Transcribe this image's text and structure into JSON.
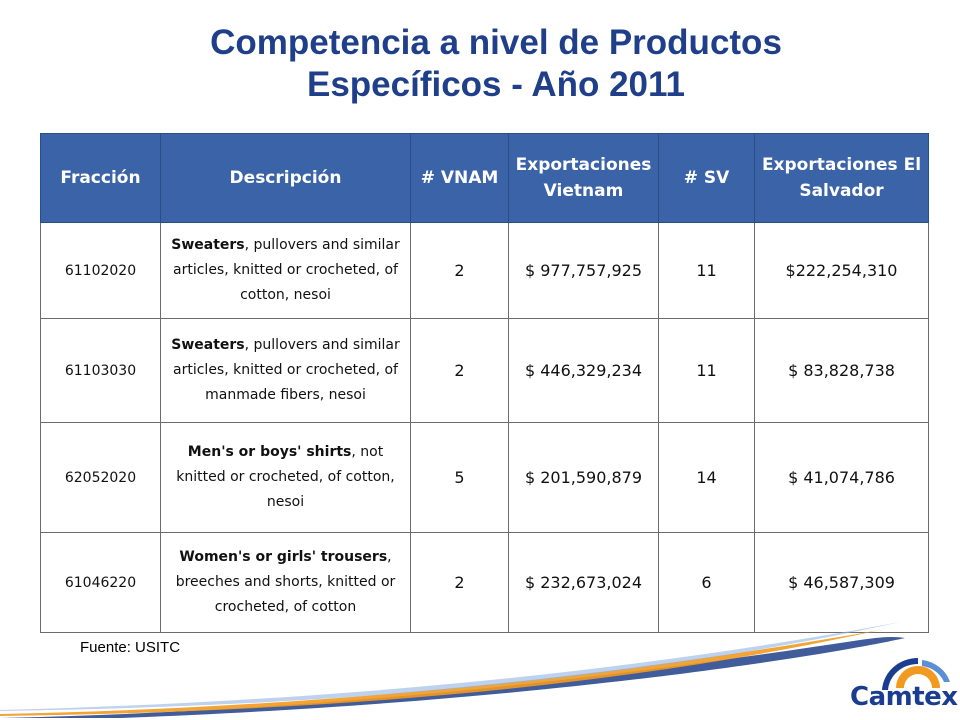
{
  "title": {
    "line1": "Competencia a nivel de Productos",
    "line2": "Específicos - Año 2011"
  },
  "table": {
    "headers": {
      "fraccion": "Fracción",
      "descripcion": "Descripción",
      "vnam": "# VNAM",
      "exp_vietnam": "Exportaciones Vietnam",
      "sv": "# SV",
      "exp_sv": "Exportaciones El Salvador"
    },
    "rows": [
      {
        "fraccion": "61102020",
        "desc_bold": "Sweaters",
        "desc_rest": ", pullovers and similar articles, knitted or crocheted, of cotton, nesoi",
        "vnam": "2",
        "exp_vietnam": "$ 977,757,925",
        "sv": "11",
        "exp_sv": "$222,254,310"
      },
      {
        "fraccion": "61103030",
        "desc_bold": "Sweaters",
        "desc_rest": ", pullovers and similar articles, knitted or crocheted, of manmade fibers, nesoi",
        "vnam": "2",
        "exp_vietnam": "$ 446,329,234",
        "sv": "11",
        "exp_sv": "$ 83,828,738"
      },
      {
        "fraccion": "62052020",
        "desc_bold": "Men's or boys' shirts",
        "desc_rest": ", not knitted or crocheted, of cotton, nesoi",
        "vnam": "5",
        "exp_vietnam": "$ 201,590,879",
        "sv": "14",
        "exp_sv": "$ 41,074,786"
      },
      {
        "fraccion": "61046220",
        "desc_bold": "Women's or girls' trousers",
        "desc_rest": ", breeches and shorts, knitted or crocheted, of cotton",
        "vnam": "2",
        "exp_vietnam": "$ 232,673,024",
        "sv": "6",
        "exp_sv": "$ 46,587,309"
      }
    ]
  },
  "source": "Fuente: USITC",
  "logo": {
    "text": "Camtex",
    "icon": "camtex-sun-logo-icon"
  },
  "colors": {
    "title": "#1f3f8a",
    "header_bg": "#3b63a8",
    "swoosh_blue": "#1f3f8a",
    "swoosh_orange": "#f29a1f"
  }
}
